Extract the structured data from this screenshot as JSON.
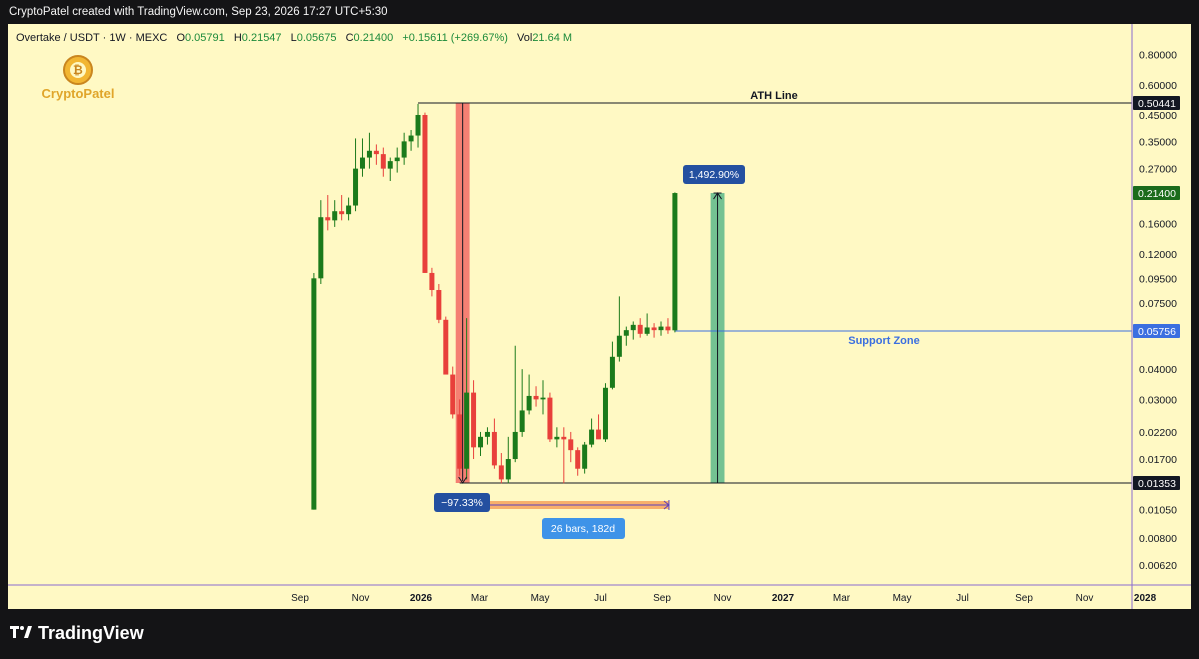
{
  "window": {
    "caption": "CryptoPatel created with TradingView.com, Sep 23, 2026 17:27 UTC+5:30"
  },
  "legend": {
    "symbol": "Overtake / USDT · 1W · MEXC",
    "o_label": "O",
    "o_value": "0.05791",
    "h_label": "H",
    "h_value": "0.21547",
    "l_label": "L",
    "l_value": "0.05675",
    "c_label": "C",
    "c_value": "0.21400",
    "change": "+0.15611 (+269.67%)",
    "vol_label": "Vol",
    "vol_value": "21.64 M"
  },
  "watermark": {
    "text": "CryptoPatel"
  },
  "annotations": {
    "ath_label": "ATH Line",
    "support_label": "Support Zone",
    "gain_label": "1,492.90%",
    "drop_label": "−97.33%",
    "range_label": "26 bars, 182d"
  },
  "price_badges": {
    "ath": "0.50441",
    "current": "0.21400",
    "support": "0.05756",
    "low": "0.01353"
  },
  "footer": {
    "brand": "TradingView"
  },
  "colors": {
    "background": "#fff9c4",
    "up": "#1b7a1b",
    "down": "#e8403b",
    "support_line": "#3b6fe0",
    "drop_zone": "#f4726a",
    "gain_zone": "#5cb88a",
    "badge_blue": "#2450a0",
    "range_bar": "#f7a35c"
  },
  "chart_data": {
    "type": "candlestick",
    "title": "Overtake / USDT · 1W · MEXC",
    "scale": "log",
    "ylim": [
      0.0055,
      1.1
    ],
    "y_ticks": [
      0.8,
      0.6,
      0.45,
      0.35,
      0.27,
      0.16,
      0.12,
      0.095,
      0.075,
      0.04,
      0.03,
      0.022,
      0.017,
      0.0105,
      0.008,
      0.0062
    ],
    "y_tick_labels": [
      "0.80000",
      "0.60000",
      "0.45000",
      "0.35000",
      "0.27000",
      "0.16000",
      "0.12000",
      "0.09500",
      "0.07500",
      "0.04000",
      "0.03000",
      "0.02200",
      "0.01700",
      "0.01050",
      "0.00800",
      "0.00620"
    ],
    "x_ticks": [
      {
        "date": "2025-09-01",
        "label": "Sep",
        "bold": false
      },
      {
        "date": "2025-11-01",
        "label": "Nov",
        "bold": false
      },
      {
        "date": "2026-01-01",
        "label": "2026",
        "bold": true
      },
      {
        "date": "2026-03-01",
        "label": "Mar",
        "bold": false
      },
      {
        "date": "2026-05-01",
        "label": "May",
        "bold": false
      },
      {
        "date": "2026-07-01",
        "label": "Jul",
        "bold": false
      },
      {
        "date": "2026-09-01",
        "label": "Sep",
        "bold": false
      },
      {
        "date": "2026-11-01",
        "label": "Nov",
        "bold": false
      },
      {
        "date": "2027-01-01",
        "label": "2027",
        "bold": true
      },
      {
        "date": "2027-03-01",
        "label": "Mar",
        "bold": false
      },
      {
        "date": "2027-05-01",
        "label": "May",
        "bold": false
      },
      {
        "date": "2027-07-01",
        "label": "Jul",
        "bold": false
      },
      {
        "date": "2027-09-01",
        "label": "Sep",
        "bold": false
      },
      {
        "date": "2027-11-01",
        "label": "Nov",
        "bold": false
      },
      {
        "date": "2028-01-01",
        "label": "2028",
        "bold": true
      }
    ],
    "x_range": [
      "2025-07-15",
      "2028-02-15"
    ],
    "levels": {
      "ath": 0.50441,
      "support": 0.05756,
      "low": 0.01353,
      "current": 0.214
    },
    "zones": {
      "drop": {
        "from": "2026-02-05",
        "to": "2026-02-19",
        "top": 0.50441,
        "bottom": 0.01353
      },
      "gain": {
        "from": "2026-10-20",
        "to": "2026-11-03",
        "top": 0.214,
        "bottom": 0.01353
      },
      "range": {
        "from": "2026-03-10",
        "to": "2026-09-08"
      }
    },
    "candles": [
      {
        "d": "2025-09-15",
        "o": 0.0105,
        "h": 0.1,
        "l": 0.0105,
        "c": 0.095
      },
      {
        "d": "2025-09-22",
        "o": 0.095,
        "h": 0.2,
        "l": 0.09,
        "c": 0.17
      },
      {
        "d": "2025-09-29",
        "o": 0.17,
        "h": 0.21,
        "l": 0.15,
        "c": 0.165
      },
      {
        "d": "2025-10-06",
        "o": 0.165,
        "h": 0.2,
        "l": 0.155,
        "c": 0.18
      },
      {
        "d": "2025-10-13",
        "o": 0.18,
        "h": 0.21,
        "l": 0.165,
        "c": 0.175
      },
      {
        "d": "2025-10-20",
        "o": 0.175,
        "h": 0.205,
        "l": 0.165,
        "c": 0.19
      },
      {
        "d": "2025-10-27",
        "o": 0.19,
        "h": 0.36,
        "l": 0.18,
        "c": 0.27
      },
      {
        "d": "2025-11-03",
        "o": 0.27,
        "h": 0.36,
        "l": 0.25,
        "c": 0.3
      },
      {
        "d": "2025-11-10",
        "o": 0.3,
        "h": 0.38,
        "l": 0.27,
        "c": 0.32
      },
      {
        "d": "2025-11-17",
        "o": 0.32,
        "h": 0.34,
        "l": 0.28,
        "c": 0.31
      },
      {
        "d": "2025-11-24",
        "o": 0.31,
        "h": 0.33,
        "l": 0.25,
        "c": 0.27
      },
      {
        "d": "2025-12-01",
        "o": 0.27,
        "h": 0.3,
        "l": 0.24,
        "c": 0.29
      },
      {
        "d": "2025-12-08",
        "o": 0.29,
        "h": 0.33,
        "l": 0.26,
        "c": 0.3
      },
      {
        "d": "2025-12-15",
        "o": 0.3,
        "h": 0.38,
        "l": 0.28,
        "c": 0.35
      },
      {
        "d": "2025-12-22",
        "o": 0.35,
        "h": 0.39,
        "l": 0.32,
        "c": 0.37
      },
      {
        "d": "2025-12-29",
        "o": 0.37,
        "h": 0.5,
        "l": 0.33,
        "c": 0.45
      },
      {
        "d": "2026-01-05",
        "o": 0.45,
        "h": 0.46,
        "l": 0.1,
        "c": 0.1
      },
      {
        "d": "2026-01-12",
        "o": 0.1,
        "h": 0.105,
        "l": 0.08,
        "c": 0.085
      },
      {
        "d": "2026-01-19",
        "o": 0.085,
        "h": 0.09,
        "l": 0.062,
        "c": 0.064
      },
      {
        "d": "2026-01-26",
        "o": 0.064,
        "h": 0.066,
        "l": 0.04,
        "c": 0.038
      },
      {
        "d": "2026-02-02",
        "o": 0.038,
        "h": 0.041,
        "l": 0.025,
        "c": 0.026
      },
      {
        "d": "2026-02-09",
        "o": 0.026,
        "h": 0.03,
        "l": 0.0145,
        "c": 0.0155
      },
      {
        "d": "2026-02-16",
        "o": 0.0155,
        "h": 0.065,
        "l": 0.014,
        "c": 0.032
      },
      {
        "d": "2026-02-23",
        "o": 0.032,
        "h": 0.036,
        "l": 0.017,
        "c": 0.019
      },
      {
        "d": "2026-03-02",
        "o": 0.019,
        "h": 0.022,
        "l": 0.0175,
        "c": 0.021
      },
      {
        "d": "2026-03-09",
        "o": 0.021,
        "h": 0.023,
        "l": 0.0195,
        "c": 0.022
      },
      {
        "d": "2026-03-16",
        "o": 0.022,
        "h": 0.025,
        "l": 0.0155,
        "c": 0.016
      },
      {
        "d": "2026-03-23",
        "o": 0.016,
        "h": 0.018,
        "l": 0.0135,
        "c": 0.014
      },
      {
        "d": "2026-03-30",
        "o": 0.014,
        "h": 0.021,
        "l": 0.0135,
        "c": 0.017
      },
      {
        "d": "2026-04-06",
        "o": 0.017,
        "h": 0.05,
        "l": 0.0165,
        "c": 0.022
      },
      {
        "d": "2026-04-13",
        "o": 0.022,
        "h": 0.04,
        "l": 0.021,
        "c": 0.027
      },
      {
        "d": "2026-04-20",
        "o": 0.027,
        "h": 0.038,
        "l": 0.026,
        "c": 0.031
      },
      {
        "d": "2026-04-27",
        "o": 0.031,
        "h": 0.034,
        "l": 0.028,
        "c": 0.03
      },
      {
        "d": "2026-05-04",
        "o": 0.03,
        "h": 0.036,
        "l": 0.026,
        "c": 0.0305
      },
      {
        "d": "2026-05-11",
        "o": 0.0305,
        "h": 0.032,
        "l": 0.02,
        "c": 0.0205
      },
      {
        "d": "2026-05-18",
        "o": 0.0205,
        "h": 0.023,
        "l": 0.019,
        "c": 0.021
      },
      {
        "d": "2026-05-25",
        "o": 0.021,
        "h": 0.023,
        "l": 0.0135,
        "c": 0.0205
      },
      {
        "d": "2026-06-01",
        "o": 0.0205,
        "h": 0.022,
        "l": 0.0165,
        "c": 0.0185
      },
      {
        "d": "2026-06-08",
        "o": 0.0185,
        "h": 0.019,
        "l": 0.0145,
        "c": 0.0155
      },
      {
        "d": "2026-06-15",
        "o": 0.0155,
        "h": 0.02,
        "l": 0.0148,
        "c": 0.0195
      },
      {
        "d": "2026-06-22",
        "o": 0.0195,
        "h": 0.025,
        "l": 0.019,
        "c": 0.0225
      },
      {
        "d": "2026-06-29",
        "o": 0.0225,
        "h": 0.026,
        "l": 0.021,
        "c": 0.0205
      },
      {
        "d": "2026-07-06",
        "o": 0.0205,
        "h": 0.035,
        "l": 0.02,
        "c": 0.0335
      },
      {
        "d": "2026-07-13",
        "o": 0.0335,
        "h": 0.052,
        "l": 0.033,
        "c": 0.045
      },
      {
        "d": "2026-07-20",
        "o": 0.045,
        "h": 0.08,
        "l": 0.043,
        "c": 0.055
      },
      {
        "d": "2026-07-27",
        "o": 0.055,
        "h": 0.06,
        "l": 0.05,
        "c": 0.058
      },
      {
        "d": "2026-08-03",
        "o": 0.058,
        "h": 0.063,
        "l": 0.053,
        "c": 0.061
      },
      {
        "d": "2026-08-10",
        "o": 0.061,
        "h": 0.065,
        "l": 0.054,
        "c": 0.056
      },
      {
        "d": "2026-08-17",
        "o": 0.056,
        "h": 0.068,
        "l": 0.055,
        "c": 0.0595
      },
      {
        "d": "2026-08-24",
        "o": 0.0595,
        "h": 0.062,
        "l": 0.054,
        "c": 0.058
      },
      {
        "d": "2026-08-31",
        "o": 0.058,
        "h": 0.063,
        "l": 0.055,
        "c": 0.06
      },
      {
        "d": "2026-09-07",
        "o": 0.06,
        "h": 0.065,
        "l": 0.056,
        "c": 0.0579
      },
      {
        "d": "2026-09-14",
        "o": 0.05791,
        "h": 0.21547,
        "l": 0.05675,
        "c": 0.214
      }
    ]
  }
}
